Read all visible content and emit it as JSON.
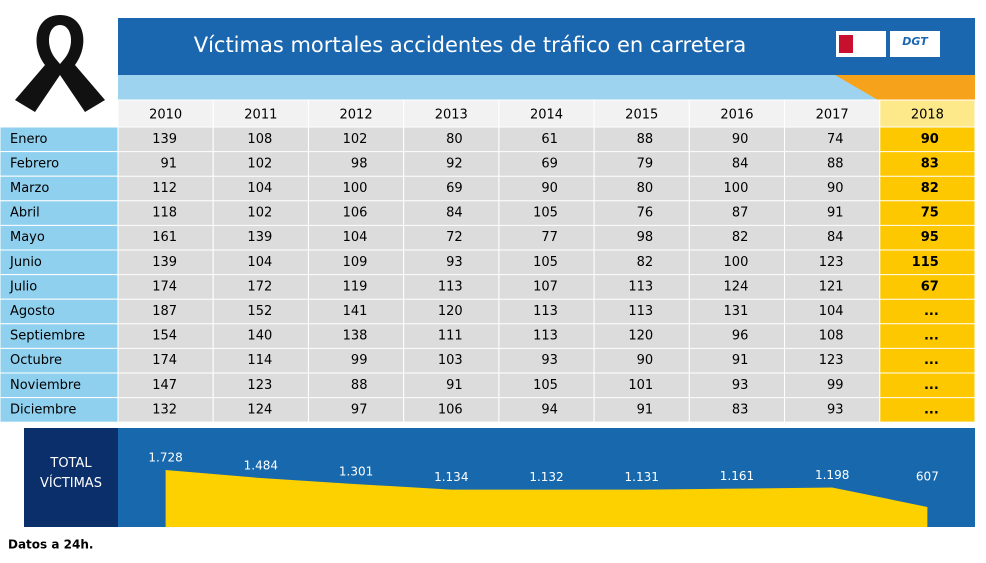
{
  "title": "Víctimas mortales accidentes de tráfico en carretera",
  "logo_text": "DGT",
  "years": [
    "2010",
    "2011",
    "2012",
    "2013",
    "2014",
    "2015",
    "2016",
    "2017",
    "2018"
  ],
  "rows": [
    {
      "month": "Enero",
      "values": [
        139,
        108,
        102,
        80,
        61,
        88,
        90,
        74,
        90
      ]
    },
    {
      "month": "Febrero",
      "values": [
        91,
        102,
        98,
        92,
        69,
        79,
        84,
        88,
        83
      ]
    },
    {
      "month": "Marzo",
      "values": [
        112,
        104,
        100,
        69,
        90,
        80,
        100,
        90,
        82
      ]
    },
    {
      "month": "Abril",
      "values": [
        118,
        102,
        106,
        84,
        105,
        76,
        87,
        91,
        75
      ]
    },
    {
      "month": "Mayo",
      "values": [
        161,
        139,
        104,
        72,
        77,
        98,
        82,
        84,
        95
      ]
    },
    {
      "month": "Junio",
      "values": [
        139,
        104,
        109,
        93,
        105,
        82,
        100,
        123,
        115
      ]
    },
    {
      "month": "Julio",
      "values": [
        174,
        172,
        119,
        113,
        107,
        113,
        124,
        121,
        67
      ]
    },
    {
      "month": "Agosto",
      "values": [
        187,
        152,
        141,
        120,
        113,
        113,
        131,
        104,
        "..."
      ]
    },
    {
      "month": "Septiembre",
      "values": [
        154,
        140,
        138,
        111,
        113,
        120,
        96,
        108,
        "..."
      ]
    },
    {
      "month": "Octubre",
      "values": [
        174,
        114,
        99,
        103,
        93,
        90,
        91,
        123,
        "..."
      ]
    },
    {
      "month": "Noviembre",
      "values": [
        147,
        123,
        88,
        91,
        105,
        101,
        93,
        99,
        "..."
      ]
    },
    {
      "month": "Diciembre",
      "values": [
        132,
        124,
        97,
        106,
        94,
        91,
        83,
        93,
        "..."
      ]
    }
  ],
  "totals": {
    "label": "TOTAL VÍCTIMAS",
    "values": [
      1728,
      1484,
      1301,
      1134,
      1132,
      1131,
      1161,
      1198,
      607
    ],
    "labels": [
      "1.728",
      "1.484",
      "1.301",
      "1.134",
      "1.132",
      "1.131",
      "1.161",
      "1.198",
      "607"
    ]
  },
  "footnote": "Datos a 24h."
}
